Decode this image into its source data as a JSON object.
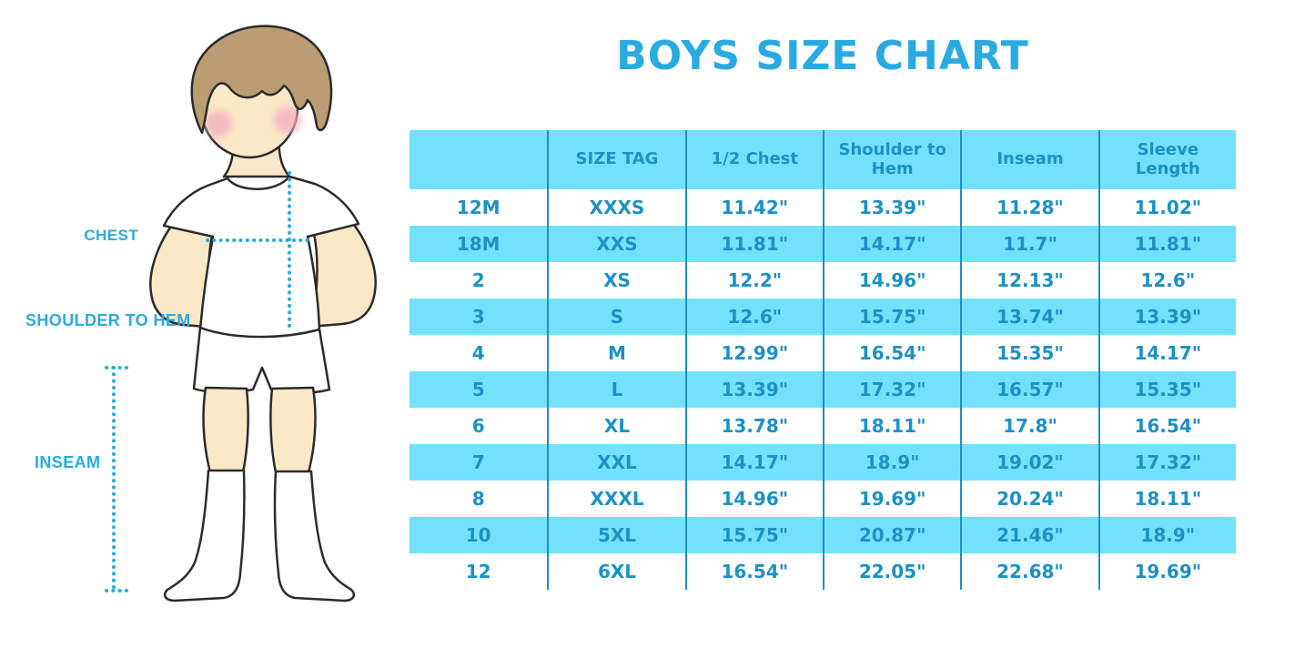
{
  "title": "BOYS SIZE CHART",
  "colors": {
    "accent": "#29ABE2",
    "row_fill": "#74E1FC",
    "divider_line": "#1E8FC0",
    "table_text": "#1B91C6",
    "skin": "#FBE8C7",
    "hair": "#BC9C72",
    "blush": "#F2AEC0"
  },
  "figure": {
    "labels": {
      "chest": "CHEST",
      "shoulder_to_hem": "SHOULDER TO HEM",
      "inseam": "INSEAM"
    }
  },
  "table": {
    "headers": [
      "",
      "SIZE TAG",
      "1/2 Chest",
      "Shoulder to Hem",
      "Inseam",
      "Sleeve Length"
    ],
    "rows": [
      [
        "12M",
        "XXXS",
        "11.42\"",
        "13.39\"",
        "11.28\"",
        "11.02\""
      ],
      [
        "18M",
        "XXS",
        "11.81\"",
        "14.17\"",
        "11.7\"",
        "11.81\""
      ],
      [
        "2",
        "XS",
        "12.2\"",
        "14.96\"",
        "12.13\"",
        "12.6\""
      ],
      [
        "3",
        "S",
        "12.6\"",
        "15.75\"",
        "13.74\"",
        "13.39\""
      ],
      [
        "4",
        "M",
        "12.99\"",
        "16.54\"",
        "15.35\"",
        "14.17\""
      ],
      [
        "5",
        "L",
        "13.39\"",
        "17.32\"",
        "16.57\"",
        "15.35\""
      ],
      [
        "6",
        "XL",
        "13.78\"",
        "18.11\"",
        "17.8\"",
        "16.54\""
      ],
      [
        "7",
        "XXL",
        "14.17\"",
        "18.9\"",
        "19.02\"",
        "17.32\""
      ],
      [
        "8",
        "XXXL",
        "14.96\"",
        "19.69\"",
        "20.24\"",
        "18.11\""
      ],
      [
        "10",
        "5XL",
        "15.75\"",
        "20.87\"",
        "21.46\"",
        "18.9\""
      ],
      [
        "12",
        "6XL",
        "16.54\"",
        "22.05\"",
        "22.68\"",
        "19.69\""
      ]
    ]
  }
}
